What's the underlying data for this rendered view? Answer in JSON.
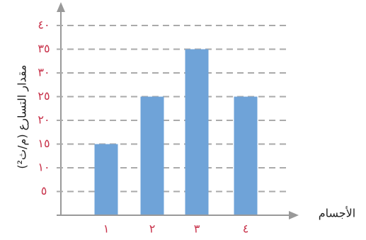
{
  "chart_data": {
    "type": "bar",
    "y_label": "مقدار التسارع (م/ث²)",
    "x_label": "الأجسام",
    "categories": [
      "١",
      "٢",
      "٣",
      "٤"
    ],
    "values": [
      15,
      25,
      35,
      25
    ],
    "color": "#6fa3d8",
    "ylim": [
      0,
      40
    ],
    "yticks": [
      {
        "value": 5,
        "label": "٥"
      },
      {
        "value": 10,
        "label": "١٠"
      },
      {
        "value": 15,
        "label": "١٥"
      },
      {
        "value": 20,
        "label": "٢٠"
      },
      {
        "value": 25,
        "label": "٢٥"
      },
      {
        "value": 30,
        "label": "٣٠"
      },
      {
        "value": 35,
        "label": "٣٥"
      },
      {
        "value": 40,
        "label": "٤٠"
      }
    ],
    "grid": true
  }
}
